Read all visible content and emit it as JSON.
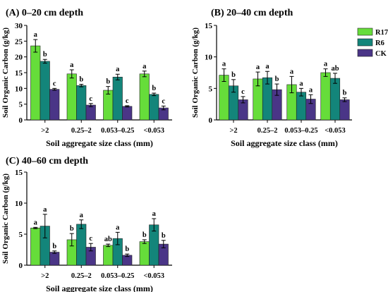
{
  "figure": {
    "legend": [
      {
        "name": "R17",
        "color": "#66dd3a"
      },
      {
        "name": "R6",
        "color": "#13857a"
      },
      {
        "name": "CK",
        "color": "#4a3587"
      }
    ]
  },
  "chart_data": [
    {
      "type": "bar",
      "title": "(A) 0–20 cm depth",
      "xlabel": "Soil aggregate size class (mm)",
      "ylabel": "Soil Organic Carbon (g/kg)",
      "ylim": [
        0,
        30
      ],
      "yticks": [
        0,
        5,
        10,
        15,
        20,
        25,
        30
      ],
      "categories": [
        ">2",
        "0.25–2",
        "0.053–0.25",
        "<0.053"
      ],
      "series": [
        {
          "name": "R17",
          "values": [
            23.5,
            14.6,
            9.4,
            14.6
          ],
          "errors": [
            2.0,
            1.3,
            1.2,
            0.9
          ],
          "letters": [
            "a",
            "a",
            "b",
            "a"
          ]
        },
        {
          "name": "R6",
          "values": [
            18.6,
            10.9,
            13.6,
            8.1
          ],
          "errors": [
            0.6,
            0.4,
            0.9,
            0.4
          ],
          "letters": [
            "b",
            "b",
            "a",
            "b"
          ]
        },
        {
          "name": "CK",
          "values": [
            9.7,
            4.7,
            4.3,
            3.8
          ],
          "errors": [
            0.3,
            0.5,
            0.2,
            0.6
          ],
          "letters": [
            "c",
            "c",
            "c",
            "c"
          ]
        }
      ],
      "legend_position": "none",
      "grid": false
    },
    {
      "type": "bar",
      "title": "(B) 20–40 cm depth",
      "xlabel": "Soil aggregate size class (mm)",
      "ylabel": "Soil Organic Carbon (g/kg)",
      "ylim": [
        0,
        15
      ],
      "yticks": [
        0,
        5,
        10,
        15
      ],
      "categories": [
        ">2",
        "0.25–2",
        "0.053–0.25",
        "<0.053"
      ],
      "series": [
        {
          "name": "R17",
          "values": [
            7.1,
            6.5,
            5.6,
            7.5
          ],
          "errors": [
            1.0,
            1.1,
            1.3,
            0.6
          ],
          "letters": [
            "a",
            "a",
            "a",
            "a"
          ]
        },
        {
          "name": "R6",
          "values": [
            5.4,
            6.7,
            4.4,
            6.6
          ],
          "errors": [
            1.0,
            1.0,
            0.6,
            0.8
          ],
          "letters": [
            "b",
            "a",
            "a",
            "ab"
          ]
        },
        {
          "name": "CK",
          "values": [
            3.2,
            4.8,
            3.3,
            3.2
          ],
          "errors": [
            0.5,
            0.9,
            0.7,
            0.3
          ],
          "letters": [
            "c",
            "b",
            "a",
            "b"
          ]
        }
      ],
      "legend_position": "right",
      "grid": false
    },
    {
      "type": "bar",
      "title": "(C) 40–60 cm depth",
      "xlabel": "Soil aggregate size class (mm)",
      "ylabel": "Soil Organic Carbon (g/kg)",
      "ylim": [
        0,
        15
      ],
      "yticks": [
        0,
        5,
        10,
        15
      ],
      "categories": [
        ">2",
        "0.25–2",
        "0.053–0.25",
        "<0.053"
      ],
      "series": [
        {
          "name": "R17",
          "values": [
            6.0,
            4.1,
            3.2,
            3.8
          ],
          "errors": [
            0.1,
            1.0,
            0.2,
            0.3
          ],
          "letters": [
            "a",
            "b",
            "ab",
            "b"
          ]
        },
        {
          "name": "R6",
          "values": [
            6.3,
            6.6,
            4.3,
            6.5
          ],
          "errors": [
            1.9,
            0.7,
            1.0,
            1.0
          ],
          "letters": [
            "a",
            "a",
            "a",
            "a"
          ]
        },
        {
          "name": "CK",
          "values": [
            2.1,
            2.9,
            1.6,
            3.4
          ],
          "errors": [
            0.2,
            0.6,
            0.2,
            0.6
          ],
          "letters": [
            "b",
            "c",
            "b",
            "b"
          ]
        }
      ],
      "legend_position": "none",
      "grid": false
    }
  ]
}
